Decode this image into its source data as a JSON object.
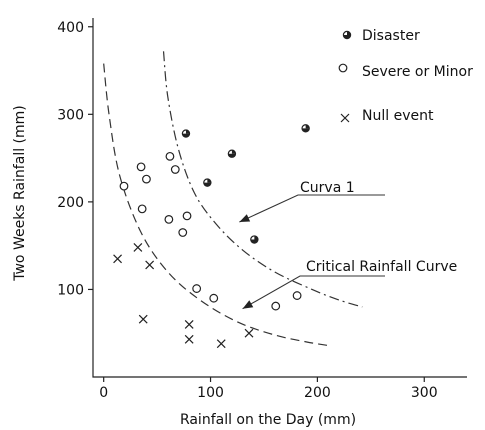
{
  "chart_data": {
    "type": "scatter",
    "xlabel": "Rainfall on the Day (mm)",
    "ylabel": "Two Weeks Rainfall (mm)",
    "xlim": [
      -10,
      340
    ],
    "ylim": [
      0,
      410
    ],
    "xticks": [
      0,
      100,
      200,
      300
    ],
    "yticks": [
      100,
      200,
      300,
      400
    ],
    "xtick_labels": [
      "0",
      "100",
      "200",
      "300"
    ],
    "ytick_labels": [
      "100",
      "200",
      "300",
      "400"
    ],
    "grid": false,
    "legend_position": "top-right",
    "series": [
      {
        "name": "Disaster",
        "marker": "half-filled-circle",
        "points": [
          {
            "x": 77,
            "y": 278
          },
          {
            "x": 120,
            "y": 255
          },
          {
            "x": 97,
            "y": 222
          },
          {
            "x": 141,
            "y": 157
          },
          {
            "x": 189,
            "y": 284
          }
        ]
      },
      {
        "name": "Severe or Minor",
        "marker": "open-circle",
        "points": [
          {
            "x": 62,
            "y": 252
          },
          {
            "x": 35,
            "y": 240
          },
          {
            "x": 67,
            "y": 237
          },
          {
            "x": 40,
            "y": 226
          },
          {
            "x": 19,
            "y": 218
          },
          {
            "x": 36,
            "y": 192
          },
          {
            "x": 61,
            "y": 180
          },
          {
            "x": 78,
            "y": 184
          },
          {
            "x": 74,
            "y": 165
          },
          {
            "x": 87,
            "y": 101
          },
          {
            "x": 103,
            "y": 90
          },
          {
            "x": 161,
            "y": 81
          },
          {
            "x": 181,
            "y": 93
          }
        ]
      },
      {
        "name": "Null event",
        "marker": "x",
        "points": [
          {
            "x": 13,
            "y": 135
          },
          {
            "x": 32,
            "y": 148
          },
          {
            "x": 43,
            "y": 128
          },
          {
            "x": 37,
            "y": 66
          },
          {
            "x": 80,
            "y": 60
          },
          {
            "x": 80,
            "y": 43
          },
          {
            "x": 110,
            "y": 38
          },
          {
            "x": 136,
            "y": 50
          }
        ]
      }
    ],
    "curves": [
      {
        "name": "Curva 1",
        "style": "dash-dot",
        "points": [
          [
            56,
            372
          ],
          [
            60,
            320
          ],
          [
            70,
            260
          ],
          [
            85,
            210
          ],
          [
            105,
            175
          ],
          [
            130,
            145
          ],
          [
            160,
            120
          ],
          [
            195,
            100
          ],
          [
            220,
            88
          ],
          [
            242,
            80
          ]
        ]
      },
      {
        "name": "Critical Rainfall Curve",
        "style": "dashed",
        "points": [
          [
            0,
            358
          ],
          [
            5,
            300
          ],
          [
            15,
            230
          ],
          [
            35,
            165
          ],
          [
            60,
            120
          ],
          [
            90,
            88
          ],
          [
            125,
            63
          ],
          [
            160,
            48
          ],
          [
            190,
            40
          ],
          [
            210,
            36
          ]
        ]
      }
    ],
    "annotations": [
      {
        "text": "Curva 1",
        "anchor": [
          188,
          203
        ],
        "arrow_to": [
          127,
          177
        ]
      },
      {
        "text": "Critical Rainfall Curve",
        "anchor": [
          179,
          112
        ],
        "arrow_to": [
          130,
          78
        ]
      }
    ]
  }
}
